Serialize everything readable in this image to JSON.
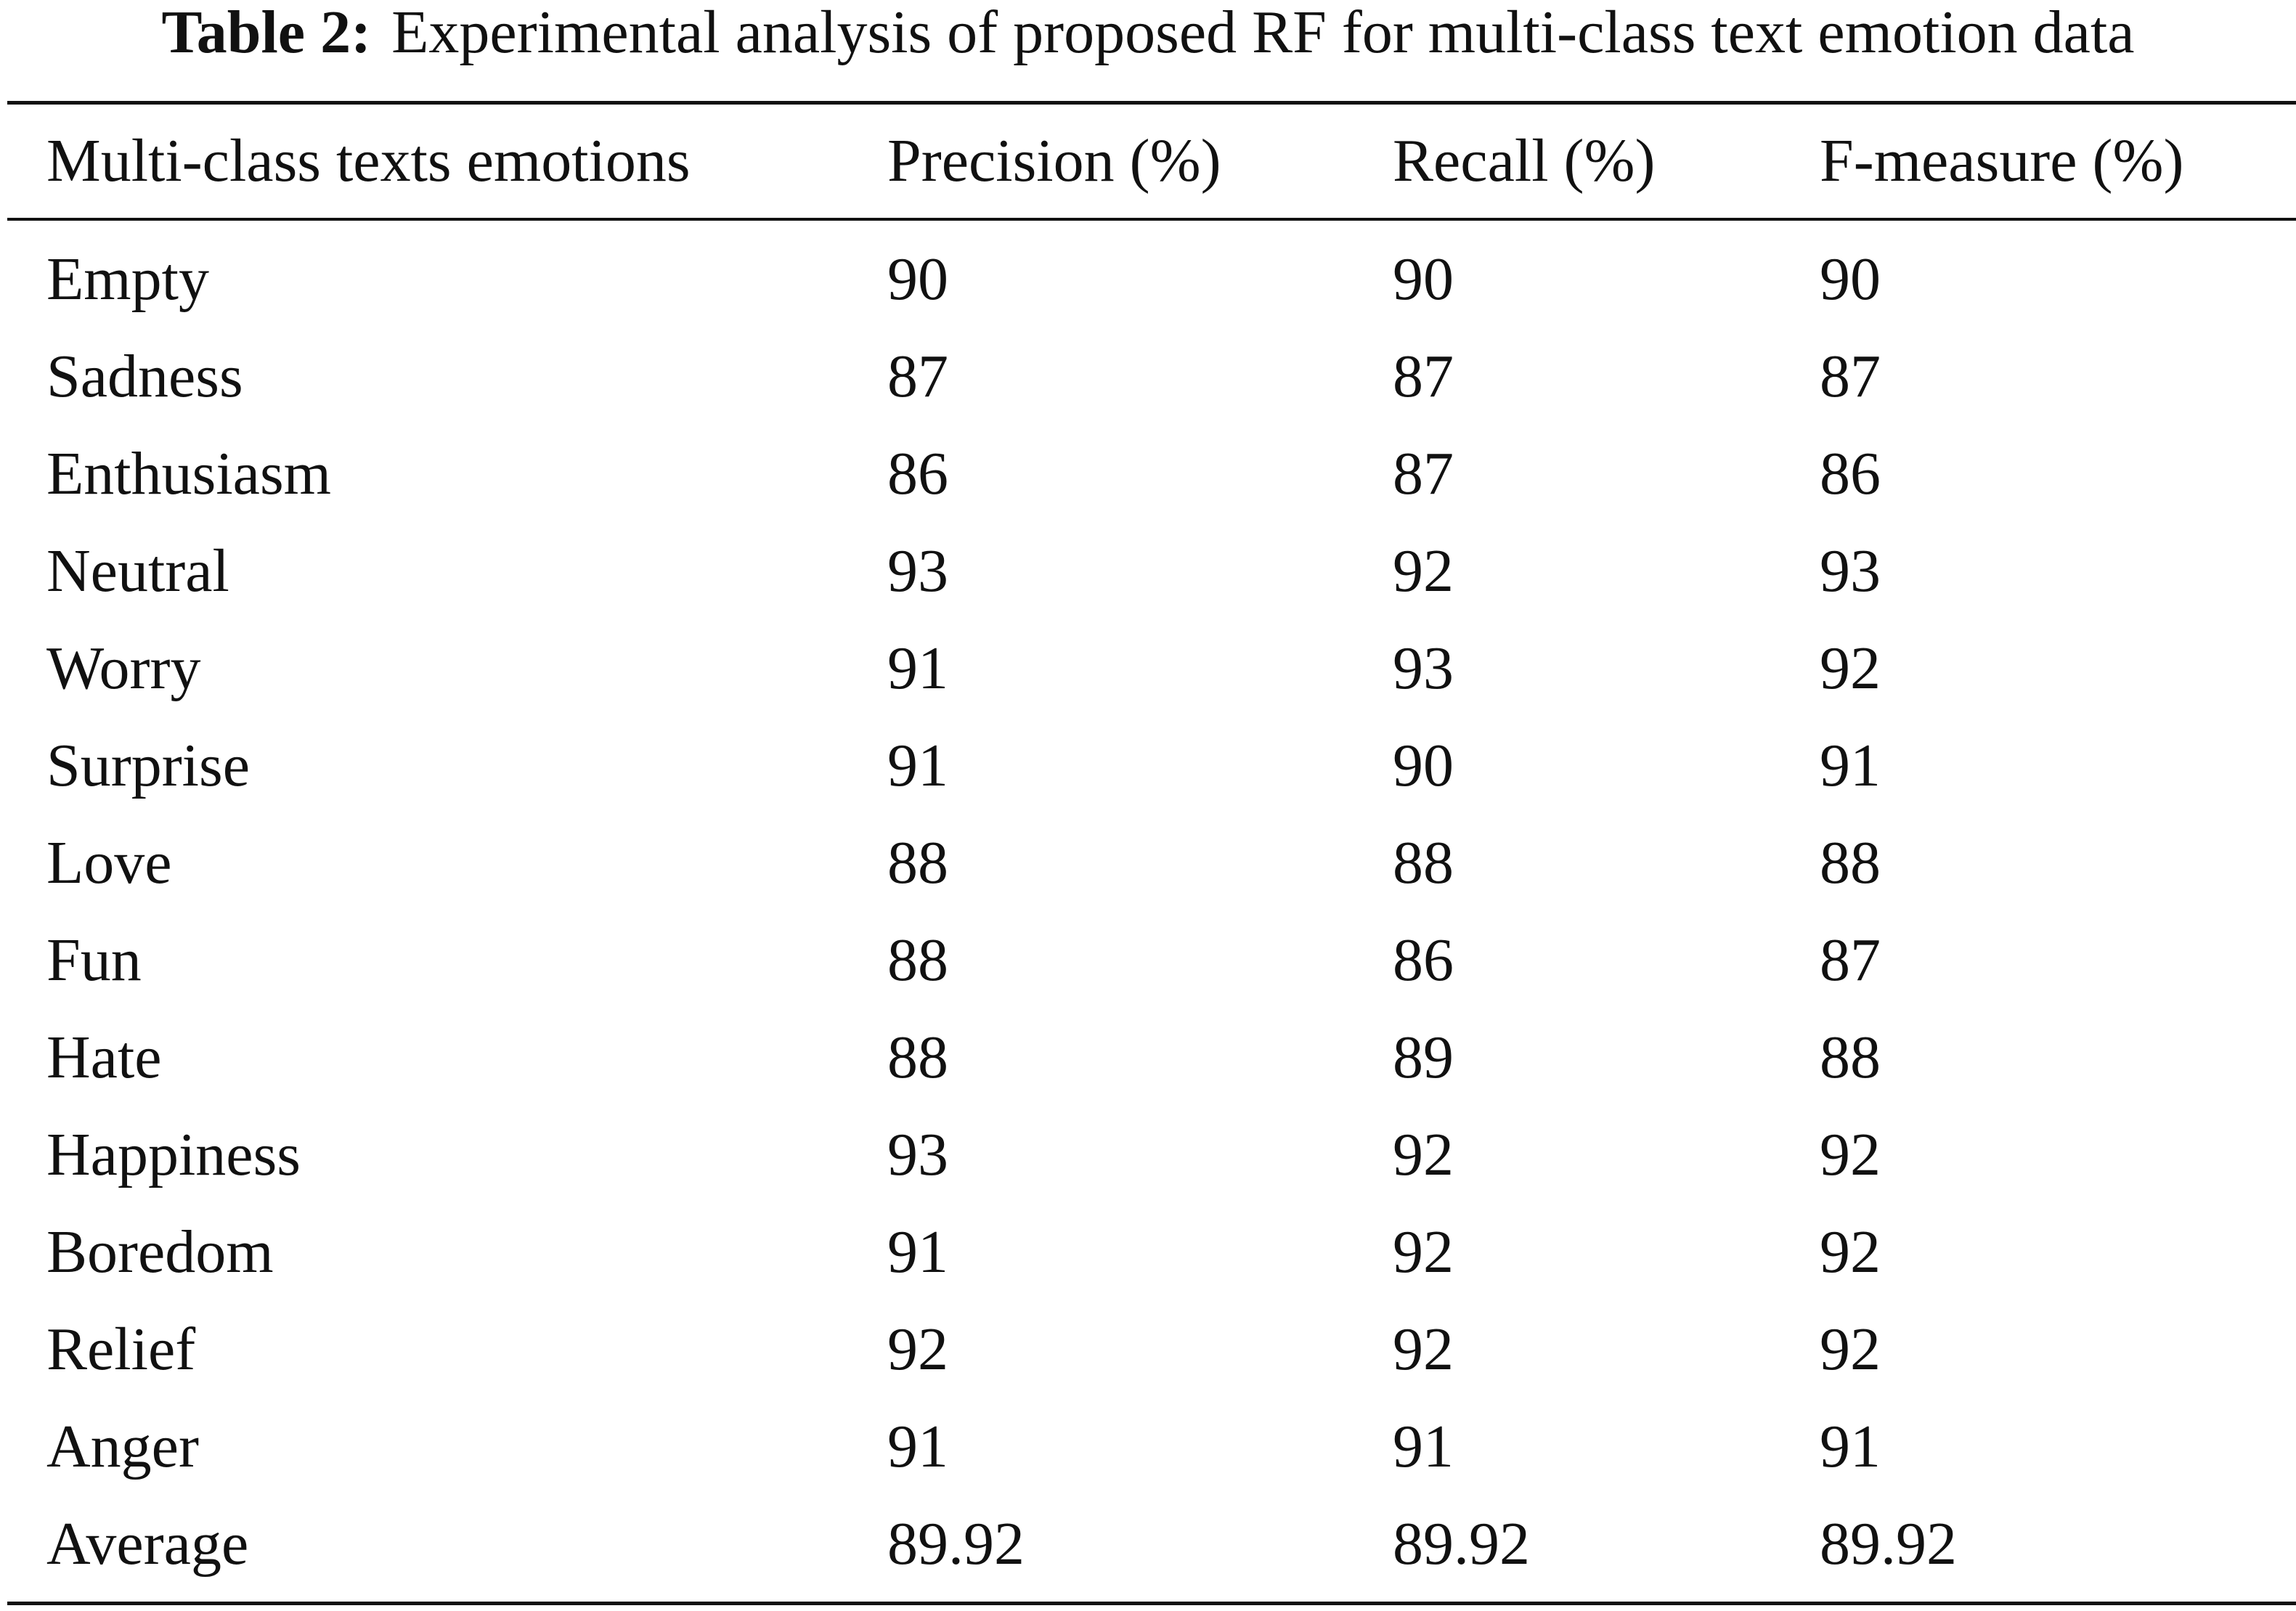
{
  "caption": {
    "label": "Table 2:",
    "text": "Experimental analysis of proposed RF for multi-class text emotion data"
  },
  "table": {
    "headers": [
      "Multi-class texts emotions",
      "Precision (%)",
      "Recall (%)",
      "F-measure (%)"
    ],
    "rows": [
      [
        "Empty",
        "90",
        "90",
        "90"
      ],
      [
        "Sadness",
        "87",
        "87",
        "87"
      ],
      [
        "Enthusiasm",
        "86",
        "87",
        "86"
      ],
      [
        "Neutral",
        "93",
        "92",
        "93"
      ],
      [
        "Worry",
        "91",
        "93",
        "92"
      ],
      [
        "Surprise",
        "91",
        "90",
        "91"
      ],
      [
        "Love",
        "88",
        "88",
        "88"
      ],
      [
        "Fun",
        "88",
        "86",
        "87"
      ],
      [
        "Hate",
        "88",
        "89",
        "88"
      ],
      [
        "Happiness",
        "93",
        "92",
        "92"
      ],
      [
        "Boredom",
        "91",
        "92",
        "92"
      ],
      [
        "Relief",
        "92",
        "92",
        "92"
      ],
      [
        "Anger",
        "91",
        "91",
        "91"
      ],
      [
        "Average",
        "89.92",
        "89.92",
        "89.92"
      ]
    ]
  }
}
